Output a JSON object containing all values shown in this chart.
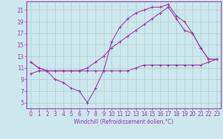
{
  "background_color": "#cce8ee",
  "grid_color": "#aacccc",
  "line_color": "#993399",
  "xlim": [
    -0.5,
    23.5
  ],
  "ylim": [
    4,
    22.5
  ],
  "xticks": [
    0,
    1,
    2,
    3,
    4,
    5,
    6,
    7,
    8,
    9,
    10,
    11,
    12,
    13,
    14,
    15,
    16,
    17,
    18,
    19,
    20,
    21,
    22,
    23
  ],
  "yticks": [
    5,
    7,
    9,
    11,
    13,
    15,
    17,
    19,
    21
  ],
  "xlabel": "Windchill (Refroidissement éolien,°C)",
  "hours": [
    0,
    1,
    2,
    3,
    4,
    5,
    6,
    7,
    8,
    9,
    10,
    11,
    12,
    13,
    14,
    15,
    16,
    17,
    18,
    19,
    20,
    21,
    22,
    23
  ],
  "line_upper": [
    12,
    11,
    10.5,
    10.5,
    10.5,
    10.5,
    10.5,
    11,
    12,
    13,
    14.5,
    15.5,
    16.5,
    17.5,
    18.5,
    19.5,
    20.5,
    21.5,
    19.5,
    17.5,
    17,
    14.5,
    12.5,
    12.5
  ],
  "line_zigzag": [
    12,
    11,
    10.5,
    9,
    8.5,
    7.5,
    7,
    5,
    7.5,
    10.5,
    15.5,
    18,
    19.5,
    20.5,
    21,
    21.5,
    21.5,
    22,
    20,
    19,
    17,
    14.5,
    12.5,
    12.5
  ],
  "line_lower": [
    10,
    10.5,
    10.5,
    10.5,
    10.5,
    10.5,
    10.5,
    10.5,
    10.5,
    10.5,
    10.5,
    10.5,
    10.5,
    11,
    11.5,
    11.5,
    11.5,
    11.5,
    11.5,
    11.5,
    11.5,
    11.5,
    12,
    12.5
  ],
  "tick_fontsize": 5.5,
  "xlabel_fontsize": 5.5
}
